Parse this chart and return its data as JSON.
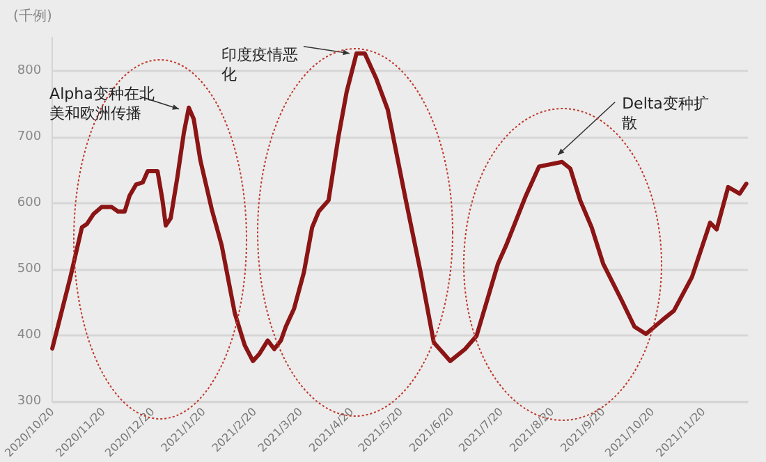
{
  "chart_data": {
    "type": "line",
    "ylabel": "(千例)",
    "x": [
      "2020-10-20",
      "2020-10-31",
      "2020-11-07",
      "2020-11-10",
      "2020-11-14",
      "2020-11-19",
      "2020-11-25",
      "2020-11-29",
      "2020-12-03",
      "2020-12-06",
      "2020-12-10",
      "2020-12-14",
      "2020-12-17",
      "2020-12-23",
      "2020-12-26",
      "2020-12-28",
      "2020-12-31",
      "2021-01-04",
      "2021-01-08",
      "2021-01-11",
      "2021-01-14",
      "2021-01-18",
      "2021-01-25",
      "2021-01-31",
      "2021-02-08",
      "2021-02-14",
      "2021-02-19",
      "2021-02-23",
      "2021-02-28",
      "2021-03-04",
      "2021-03-08",
      "2021-03-11",
      "2021-03-16",
      "2021-03-22",
      "2021-03-27",
      "2021-03-31",
      "2021-04-06",
      "2021-04-12",
      "2021-04-17",
      "2021-04-23",
      "2021-04-28",
      "2021-05-05",
      "2021-05-12",
      "2021-05-23",
      "2021-06-01",
      "2021-06-09",
      "2021-06-19",
      "2021-06-28",
      "2021-07-05",
      "2021-07-18",
      "2021-07-23",
      "2021-08-04",
      "2021-08-12",
      "2021-08-26",
      "2021-08-31",
      "2021-09-06",
      "2021-09-13",
      "2021-09-20",
      "2021-10-01",
      "2021-10-09",
      "2021-10-16",
      "2021-10-26",
      "2021-11-02",
      "2021-11-13",
      "2021-11-24",
      "2021-11-28",
      "2021-12-05",
      "2021-12-12",
      "2021-12-16"
    ],
    "series": [
      {
        "color": "#8b1414",
        "values": [
          380,
          488,
          563,
          568,
          583,
          594,
          594,
          587,
          587,
          611,
          628,
          631,
          648,
          648,
          604,
          566,
          577,
          638,
          706,
          744,
          727,
          665,
          590,
          536,
          433,
          385,
          361,
          372,
          392,
          379,
          392,
          413,
          440,
          495,
          563,
          587,
          604,
          700,
          768,
          826,
          826,
          788,
          741,
          604,
          495,
          389,
          361,
          379,
          399,
          508,
          536,
          611,
          655,
          662,
          652,
          604,
          563,
          508,
          454,
          413,
          402,
          423,
          437,
          488,
          570,
          560,
          624,
          614,
          629
        ]
      }
    ],
    "xlim": [
      "2020-10-20",
      "2021-12-17"
    ],
    "xticks": [
      {
        "value": "2020-10-20",
        "label": "2020/10/20"
      },
      {
        "value": "2020-11-20",
        "label": "2020/11/20"
      },
      {
        "value": "2020-12-20",
        "label": "2020/12/20"
      },
      {
        "value": "2021-01-20",
        "label": "2021/1/20"
      },
      {
        "value": "2021-02-20",
        "label": "2021/2/20"
      },
      {
        "value": "2021-03-20",
        "label": "2021/3/20"
      },
      {
        "value": "2021-04-20",
        "label": "2021/4/20"
      },
      {
        "value": "2021-05-20",
        "label": "2021/5/20"
      },
      {
        "value": "2021-06-20",
        "label": "2021/6/20"
      },
      {
        "value": "2021-07-20",
        "label": "2021/7/20"
      },
      {
        "value": "2021-08-20",
        "label": "2021/8/20"
      },
      {
        "value": "2021-09-20",
        "label": "2021/9/20"
      },
      {
        "value": "2021-10-20",
        "label": "2021/10/20"
      },
      {
        "value": "2021-11-20",
        "label": "2021/11/20"
      }
    ],
    "ylim": [
      300,
      850
    ],
    "yticks": [
      300,
      400,
      500,
      600,
      700,
      800
    ],
    "grid": "y",
    "marker": "none",
    "line_style": "solid",
    "annotations": [
      {
        "text": "Alpha变种在北美和欧洲传播",
        "x": "2021-01-11",
        "y": 744
      },
      {
        "text": "印度疫情恶化",
        "x": "2021-04-23",
        "y": 826
      },
      {
        "text": "Delta变种扩散",
        "x": "2021-08-26",
        "y": 662
      }
    ]
  }
}
